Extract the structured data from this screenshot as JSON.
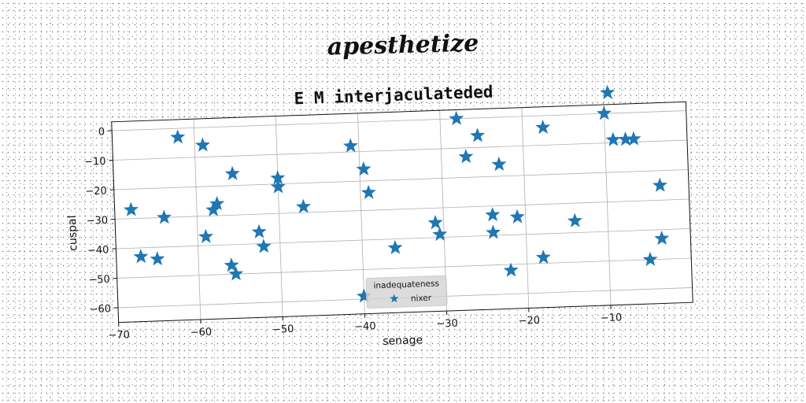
{
  "suptitle": "apesthetize",
  "chart_data": {
    "type": "scatter",
    "title": "E M interjaculateded",
    "xlabel": "senage",
    "ylabel": "cuspal",
    "xlim": [
      -70,
      0
    ],
    "ylim": [
      -65,
      3
    ],
    "xticks": [
      -70,
      -60,
      -50,
      -40,
      -30,
      -20,
      -10
    ],
    "yticks": [
      0,
      -10,
      -20,
      -30,
      -40,
      -50,
      -60
    ],
    "grid": true,
    "legend": {
      "title": "inadequateness",
      "placement": "bottom-center"
    },
    "marker_color": "#1f77b4",
    "series": [
      {
        "name": "nixer",
        "marker": "star",
        "points": [
          [
            -68,
            -27
          ],
          [
            -67,
            -43
          ],
          [
            -65,
            -44
          ],
          [
            -64,
            -30
          ],
          [
            -62,
            -3
          ],
          [
            -59,
            -6
          ],
          [
            -59,
            -37
          ],
          [
            -58,
            -28
          ],
          [
            -57.5,
            -26
          ],
          [
            -56,
            -47
          ],
          [
            -55.5,
            -50
          ],
          [
            -55.5,
            -16
          ],
          [
            -52.5,
            -36
          ],
          [
            -52,
            -41
          ],
          [
            -50,
            -21
          ],
          [
            -50,
            -18
          ],
          [
            -47,
            -28
          ],
          [
            -41,
            -8
          ],
          [
            -39.5,
            -16
          ],
          [
            -39,
            -24
          ],
          [
            -40,
            -59
          ],
          [
            -36,
            -43
          ],
          [
            -31,
            -35
          ],
          [
            -30.5,
            -39
          ],
          [
            -28,
            0
          ],
          [
            -27,
            -13
          ],
          [
            -25.5,
            -6
          ],
          [
            -24,
            -33
          ],
          [
            -24,
            -39
          ],
          [
            -23,
            -16
          ],
          [
            -22,
            -52
          ],
          [
            -21,
            -34
          ],
          [
            -18,
            -48
          ],
          [
            -17.5,
            -4
          ],
          [
            -14,
            -36
          ],
          [
            -10,
            0
          ],
          [
            -9.5,
            7
          ],
          [
            -9,
            -9
          ],
          [
            -7.5,
            -9
          ],
          [
            -6.5,
            -9
          ],
          [
            -5,
            -50
          ],
          [
            -3.5,
            -43
          ],
          [
            -3.5,
            -25
          ]
        ]
      }
    ]
  }
}
